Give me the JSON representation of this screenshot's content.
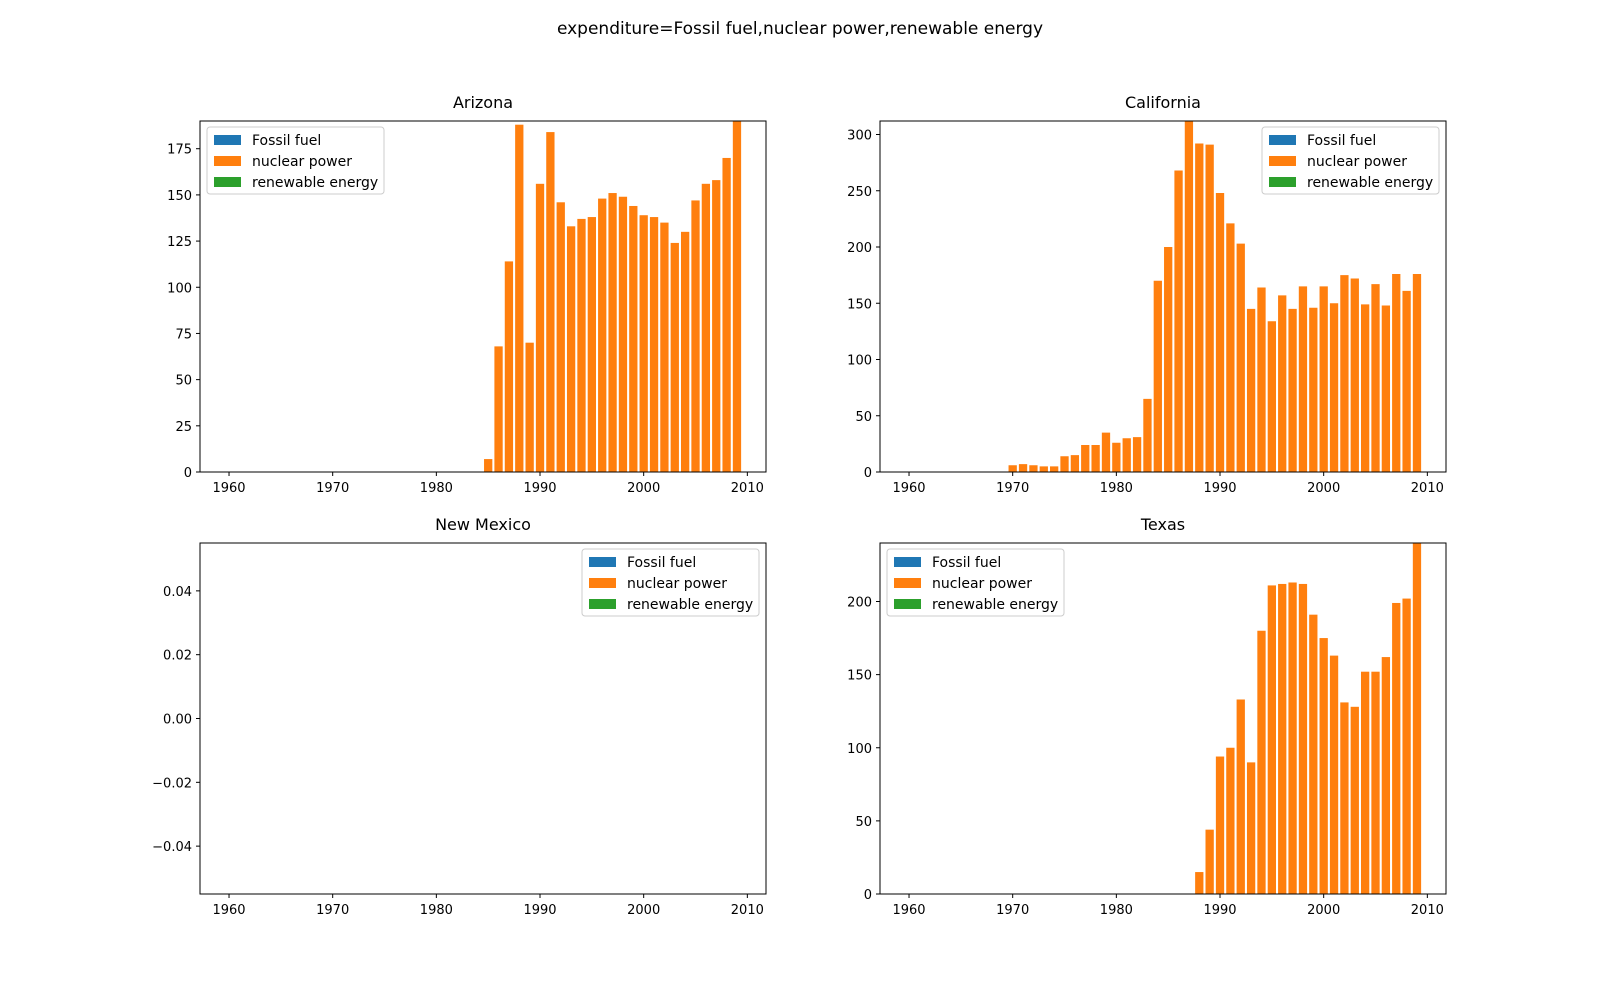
{
  "figure": {
    "suptitle": "expenditure=Fossil fuel,nuclear power,renewable energy"
  },
  "chart_data": [
    {
      "type": "bar",
      "title": "Arizona",
      "xlabel": "",
      "ylabel": "",
      "xlim": [
        1957.2,
        2011.8
      ],
      "ylim": [
        0,
        190
      ],
      "xticks": [
        "1960",
        "1970",
        "1980",
        "1990",
        "2000",
        "2010"
      ],
      "yticks": [
        "0",
        "25",
        "50",
        "75",
        "100",
        "125",
        "150",
        "175"
      ],
      "legend_position": "upper-left",
      "series": [
        {
          "name": "Fossil fuel",
          "color": "#1f77b4",
          "x": [],
          "values": []
        },
        {
          "name": "nuclear power",
          "color": "#ff7f0e",
          "x": [
            1985,
            1986,
            1987,
            1988,
            1989,
            1990,
            1991,
            1992,
            1993,
            1994,
            1995,
            1996,
            1997,
            1998,
            1999,
            2000,
            2001,
            2002,
            2003,
            2004,
            2005,
            2006,
            2007,
            2008,
            2009
          ],
          "values": [
            7,
            68,
            114,
            188,
            70,
            156,
            184,
            146,
            133,
            137,
            138,
            148,
            151,
            149,
            144,
            139,
            138,
            135,
            124,
            130,
            147,
            156,
            158,
            170,
            190
          ]
        },
        {
          "name": "renewable energy",
          "color": "#2ca02c",
          "x": [],
          "values": []
        }
      ]
    },
    {
      "type": "bar",
      "title": "California",
      "xlabel": "",
      "ylabel": "",
      "xlim": [
        1957.2,
        2011.8
      ],
      "ylim": [
        0,
        312
      ],
      "xticks": [
        "1960",
        "1970",
        "1980",
        "1990",
        "2000",
        "2010"
      ],
      "yticks": [
        "0",
        "50",
        "100",
        "150",
        "200",
        "250",
        "300"
      ],
      "legend_position": "upper-right",
      "series": [
        {
          "name": "Fossil fuel",
          "color": "#1f77b4",
          "x": [],
          "values": []
        },
        {
          "name": "nuclear power",
          "color": "#ff7f0e",
          "x": [
            1970,
            1971,
            1972,
            1973,
            1974,
            1975,
            1976,
            1977,
            1978,
            1979,
            1980,
            1981,
            1982,
            1983,
            1984,
            1985,
            1986,
            1987,
            1988,
            1989,
            1990,
            1991,
            1992,
            1993,
            1994,
            1995,
            1996,
            1997,
            1998,
            1999,
            2000,
            2001,
            2002,
            2003,
            2004,
            2005,
            2006,
            2007,
            2008,
            2009
          ],
          "values": [
            6,
            7,
            6,
            5,
            5,
            14,
            15,
            24,
            24,
            35,
            26,
            30,
            31,
            65,
            170,
            200,
            268,
            312,
            292,
            291,
            248,
            221,
            203,
            145,
            164,
            134,
            157,
            145,
            165,
            146,
            165,
            150,
            175,
            172,
            149,
            167,
            148,
            176,
            161,
            176
          ]
        },
        {
          "name": "renewable energy",
          "color": "#2ca02c",
          "x": [],
          "values": []
        }
      ]
    },
    {
      "type": "bar",
      "title": "New Mexico",
      "xlabel": "",
      "ylabel": "",
      "xlim": [
        1957.2,
        2011.8
      ],
      "ylim": [
        -0.055,
        0.055
      ],
      "xticks": [
        "1960",
        "1970",
        "1980",
        "1990",
        "2000",
        "2010"
      ],
      "yticks": [
        "−0.04",
        "−0.02",
        "0.00",
        "0.02",
        "0.04"
      ],
      "legend_position": "upper-right",
      "series": [
        {
          "name": "Fossil fuel",
          "color": "#1f77b4",
          "x": [],
          "values": []
        },
        {
          "name": "nuclear power",
          "color": "#ff7f0e",
          "x": [],
          "values": []
        },
        {
          "name": "renewable energy",
          "color": "#2ca02c",
          "x": [],
          "values": []
        }
      ]
    },
    {
      "type": "bar",
      "title": "Texas",
      "xlabel": "",
      "ylabel": "",
      "xlim": [
        1957.2,
        2011.8
      ],
      "ylim": [
        0,
        240
      ],
      "xticks": [
        "1960",
        "1970",
        "1980",
        "1990",
        "2000",
        "2010"
      ],
      "yticks": [
        "0",
        "50",
        "100",
        "150",
        "200"
      ],
      "legend_position": "upper-left",
      "series": [
        {
          "name": "Fossil fuel",
          "color": "#1f77b4",
          "x": [],
          "values": []
        },
        {
          "name": "nuclear power",
          "color": "#ff7f0e",
          "x": [
            1988,
            1989,
            1990,
            1991,
            1992,
            1993,
            1994,
            1995,
            1996,
            1997,
            1998,
            1999,
            2000,
            2001,
            2002,
            2003,
            2004,
            2005,
            2006,
            2007,
            2008,
            2009
          ],
          "values": [
            15,
            44,
            94,
            100,
            133,
            90,
            180,
            211,
            212,
            213,
            212,
            191,
            175,
            163,
            131,
            128,
            152,
            152,
            162,
            199,
            202,
            240
          ]
        },
        {
          "name": "renewable energy",
          "color": "#2ca02c",
          "x": [],
          "values": []
        }
      ]
    }
  ]
}
